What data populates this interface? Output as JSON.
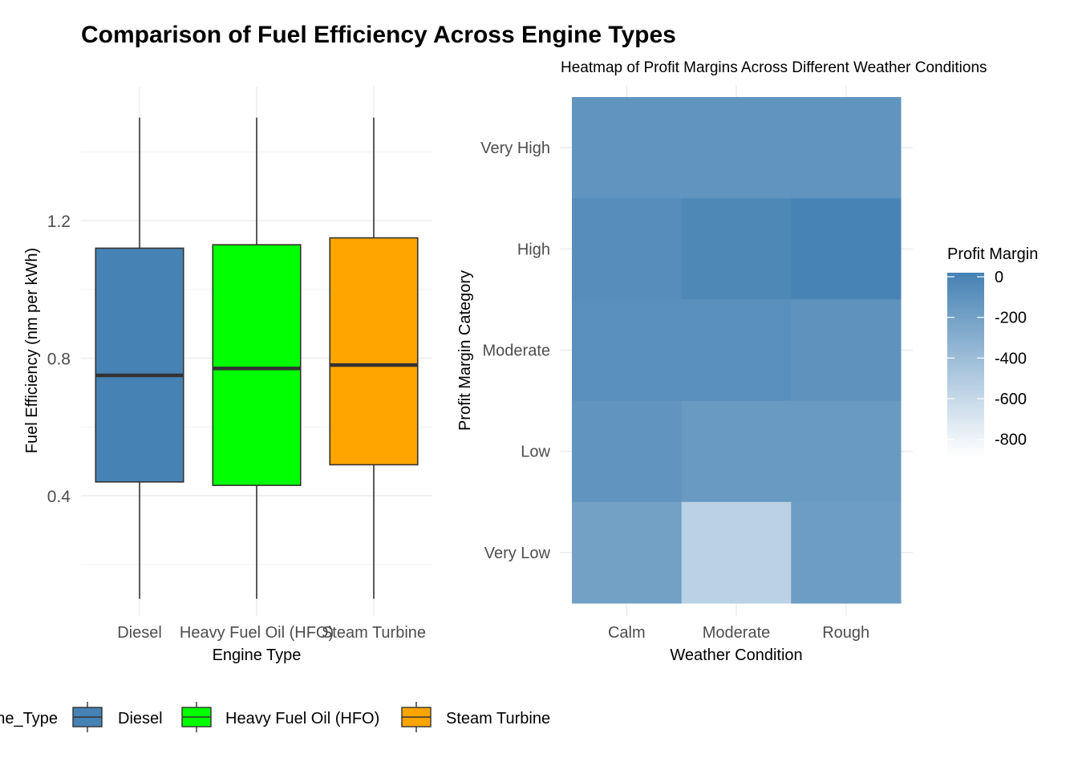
{
  "title": "Comparison of Fuel Efficiency Across Engine Types",
  "chart_data": [
    {
      "type": "box",
      "xlabel": "Engine Type",
      "ylabel": "Fuel Efficiency (nm per kWh)",
      "categories": [
        "Diesel",
        "Heavy Fuel Oil (HFO)",
        "Steam Turbine"
      ],
      "colors": [
        "#4682b4",
        "#00ff00",
        "#ffa500"
      ],
      "y_ticks": [
        0.4,
        0.8,
        1.2
      ],
      "y_tick_labels": [
        "0.4",
        "0.8",
        "1.2"
      ],
      "ylim": [
        0.05,
        1.59
      ],
      "boxes": [
        {
          "min": 0.1,
          "q1": 0.44,
          "median": 0.75,
          "q3": 1.12,
          "max": 1.5
        },
        {
          "min": 0.1,
          "q1": 0.43,
          "median": 0.77,
          "q3": 1.13,
          "max": 1.5
        },
        {
          "min": 0.1,
          "q1": 0.49,
          "median": 0.78,
          "q3": 1.15,
          "max": 1.5
        }
      ],
      "legend": {
        "title": "Engine_Type",
        "position": "bottom",
        "entries": [
          "Diesel",
          "Heavy Fuel Oil (HFO)",
          "Steam Turbine"
        ]
      }
    },
    {
      "type": "heatmap",
      "title": "Heatmap of Profit Margins Across Different Weather Conditions",
      "xlabel": "Weather Condition",
      "ylabel": "Profit Margin Category",
      "x": [
        "Calm",
        "Moderate",
        "Rough"
      ],
      "y": [
        "Very High",
        "High",
        "Moderate",
        "Low",
        "Very Low"
      ],
      "values": [
        [
          -110,
          -110,
          -110
        ],
        [
          -60,
          -20,
          10
        ],
        [
          -70,
          -70,
          -100
        ],
        [
          -110,
          -150,
          -150
        ],
        [
          -200,
          -550,
          -170
        ]
      ],
      "color_low": "#ffffff",
      "color_high": "#4682b4",
      "scale_range": [
        -880,
        20
      ],
      "legend": {
        "title": "Profit Margin",
        "position": "right",
        "ticks": [
          0,
          -200,
          -400,
          -600,
          -800
        ],
        "tick_labels": [
          "0",
          "-200",
          "-400",
          "-600",
          "-800"
        ]
      }
    }
  ]
}
